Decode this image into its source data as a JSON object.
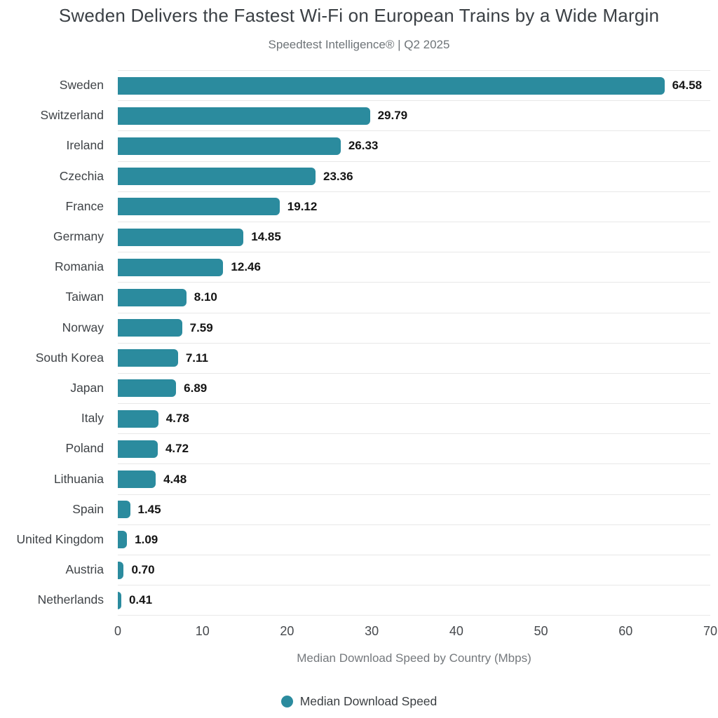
{
  "header": {
    "title": "Sweden Delivers the Fastest Wi-Fi on European Trains by a Wide Margin",
    "subtitle": "Speedtest Intelligence® | Q2 2025"
  },
  "chart_data": {
    "type": "bar",
    "orientation": "horizontal",
    "title": "Sweden Delivers the Fastest Wi-Fi on European Trains by a Wide Margin",
    "subtitle": "Speedtest Intelligence® | Q2 2025",
    "categories": [
      "Sweden",
      "Switzerland",
      "Ireland",
      "Czechia",
      "France",
      "Germany",
      "Romania",
      "Taiwan",
      "Norway",
      "South Korea",
      "Japan",
      "Italy",
      "Poland",
      "Lithuania",
      "Spain",
      "United Kingdom",
      "Austria",
      "Netherlands"
    ],
    "values": [
      64.58,
      29.79,
      26.33,
      23.36,
      19.12,
      14.85,
      12.46,
      8.1,
      7.59,
      7.11,
      6.89,
      4.78,
      4.72,
      4.48,
      1.45,
      1.09,
      0.7,
      0.41
    ],
    "value_labels": [
      "64.58",
      "29.79",
      "26.33",
      "23.36",
      "19.12",
      "14.85",
      "12.46",
      "8.10",
      "7.59",
      "7.11",
      "6.89",
      "4.78",
      "4.72",
      "4.48",
      "1.45",
      "1.09",
      "0.70",
      "0.41"
    ],
    "xlabel": "Median Download Speed by Country (Mbps)",
    "ylabel": "",
    "xlim": [
      0,
      70
    ],
    "xticks": [
      0,
      10,
      20,
      30,
      40,
      50,
      60,
      70
    ],
    "grid": "horizontal-row-separators",
    "legend": [
      "Median Download Speed"
    ],
    "legend_position": "bottom",
    "colors": {
      "bar": "#2b8b9e",
      "row_separator": "#e8e8e8",
      "value_label": "#141414",
      "category_label": "#3f4347",
      "title": "#3b4045",
      "subtitle": "#6e7478",
      "background": "#ffffff"
    }
  }
}
